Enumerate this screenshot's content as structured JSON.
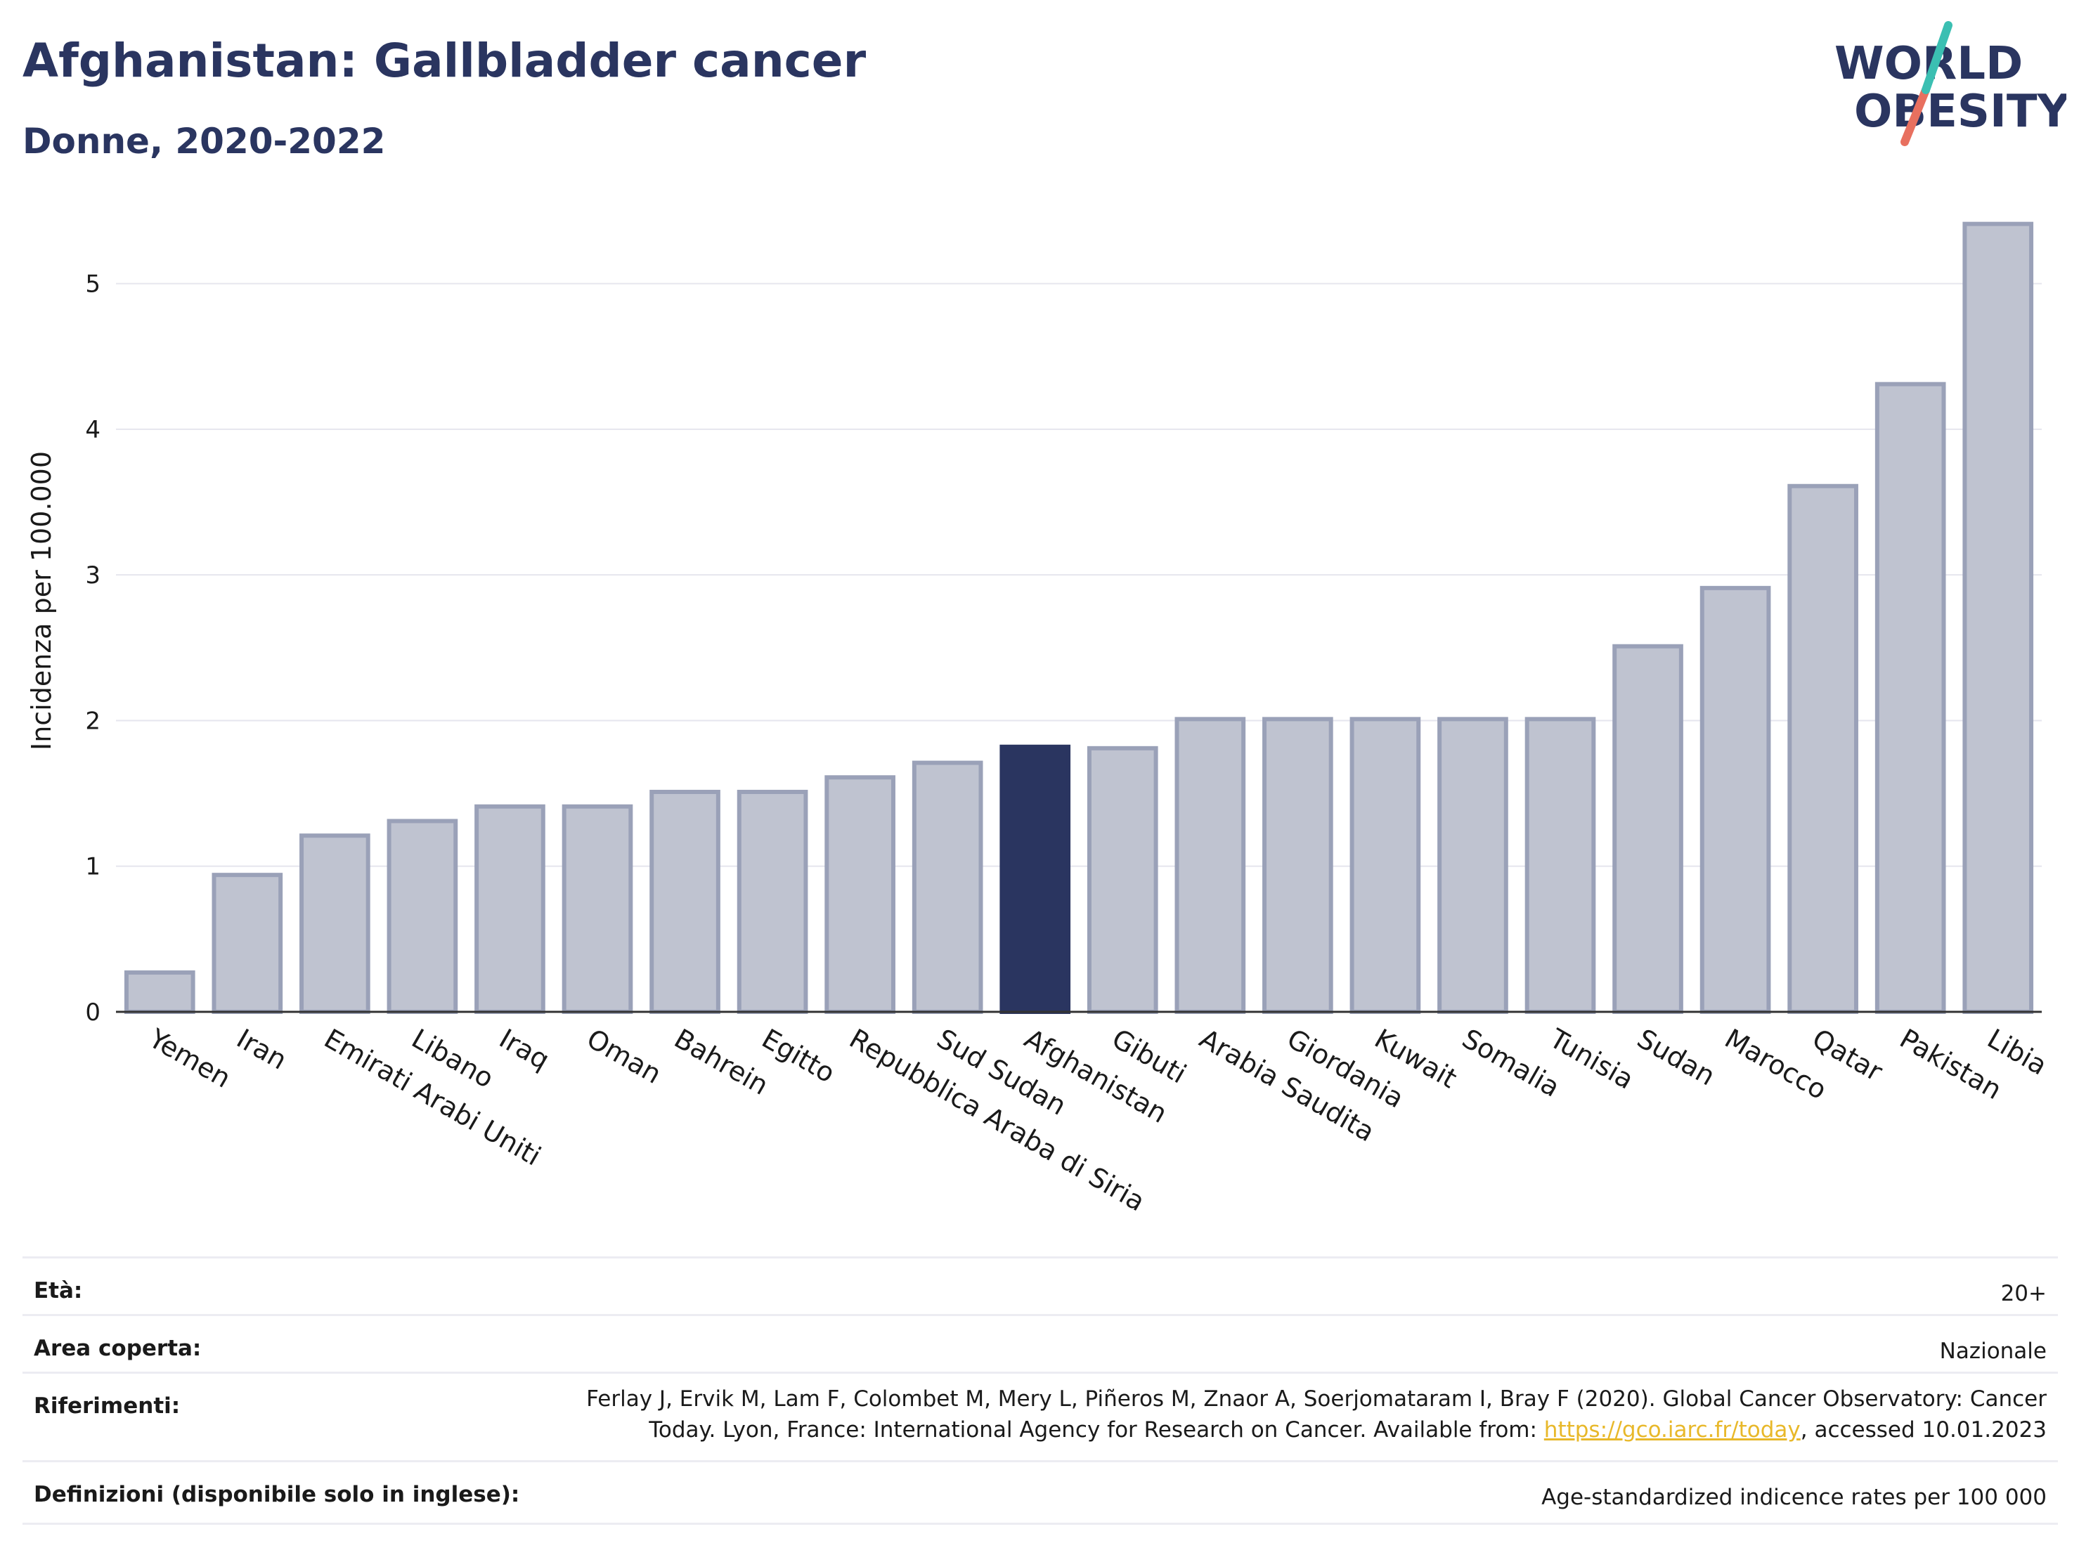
{
  "header": {
    "title": "Afghanistan: Gallbladder cancer",
    "subtitle": "Donne, 2020-2022"
  },
  "logo": {
    "line1": "WORLD",
    "line2": "OBESITY"
  },
  "colors": {
    "highlight": "#2a3560",
    "bar": "#bfc3d0",
    "bar_border": "#9aa1b8",
    "grid": "#e6e6ee"
  },
  "chart_data": {
    "type": "bar",
    "ylabel": "Incidenza per 100.000",
    "ylim": [
      0,
      5.5
    ],
    "yticks": [
      0,
      1,
      2,
      3,
      4,
      5
    ],
    "highlight": "Afghanistan",
    "categories": [
      "Yemen",
      "Iran",
      "Emirati Arabi Uniti",
      "Libano",
      "Iraq",
      "Oman",
      "Bahrein",
      "Egitto",
      "Repubblica Araba di Siria",
      "Sud Sudan",
      "Afghanistan",
      "Gibuti",
      "Arabia Saudita",
      "Giordania",
      "Kuwait",
      "Somalia",
      "Tunisia",
      "Sudan",
      "Marocco",
      "Qatar",
      "Pakistan",
      "Libia"
    ],
    "values": [
      0.27,
      0.94,
      1.21,
      1.31,
      1.41,
      1.41,
      1.51,
      1.51,
      1.61,
      1.71,
      1.82,
      1.81,
      2.01,
      2.01,
      2.01,
      2.01,
      2.01,
      2.51,
      2.91,
      3.61,
      4.31,
      5.41
    ]
  },
  "meta": {
    "age_label": "Età:",
    "age_value": "20+",
    "area_label": "Area coperta:",
    "area_value": "Nazionale",
    "ref_label": "Riferimenti:",
    "ref_text1": "Ferlay J, Ervik M, Lam F, Colombet M, Mery L, Piñeros M, Znaor A, Soerjomataram I, Bray F (2020). Global Cancer Observatory: Cancer Today. Lyon, France: International Agency for Research on Cancer. Available from: ",
    "ref_link": "https://gco.iarc.fr/today",
    "ref_text2": ", accessed 10.01.2023",
    "def_label": "Definizioni (disponibile solo in inglese):",
    "def_value": "Age-standardized indicence rates per 100 000"
  }
}
